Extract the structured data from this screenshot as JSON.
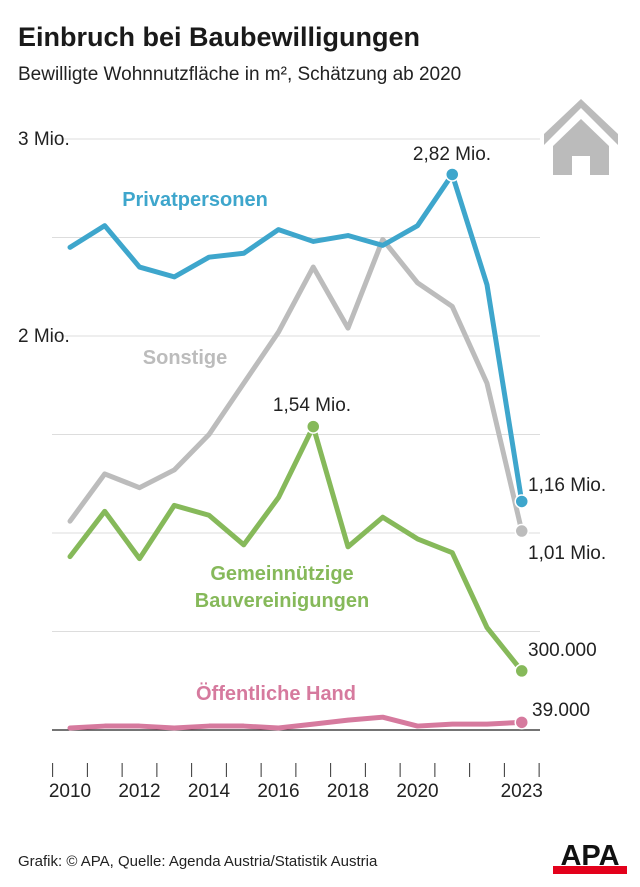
{
  "title": "Einbruch bei Baubewilligungen",
  "subtitle": "Bewilligte Wohnnutzfläche in m², Schätzung ab 2020",
  "source": "Grafik: © APA, Quelle: Agenda Austria/Statistik Austria",
  "logo": "APA",
  "icon": "house-icon",
  "chart_data": {
    "type": "line",
    "x": [
      2010,
      2011,
      2012,
      2013,
      2014,
      2015,
      2016,
      2017,
      2018,
      2019,
      2020,
      2021,
      2022,
      2023
    ],
    "x_tick_labels": [
      "2010",
      "2012",
      "2014",
      "2016",
      "2018",
      "2020",
      "2023"
    ],
    "y_tick_labels": [
      {
        "value": 3,
        "label": "3 Mio."
      },
      {
        "value": 2,
        "label": "2 Mio."
      }
    ],
    "ylim": [
      0,
      3
    ],
    "unit": "Mio. m²",
    "grid": true,
    "series": [
      {
        "name": "Privatpersonen",
        "color": "#3ea6cc",
        "values": [
          2.45,
          2.56,
          2.35,
          2.3,
          2.4,
          2.42,
          2.54,
          2.48,
          2.51,
          2.46,
          2.56,
          2.82,
          2.26,
          1.16
        ],
        "annotations": [
          {
            "year": 2021,
            "label": "2,82 Mio."
          },
          {
            "year": 2023,
            "label": "1,16 Mio."
          }
        ]
      },
      {
        "name": "Sonstige",
        "color": "#bcbcbc",
        "values": [
          1.06,
          1.3,
          1.23,
          1.32,
          1.5,
          1.76,
          2.02,
          2.35,
          2.04,
          2.49,
          2.27,
          2.15,
          1.76,
          1.01
        ],
        "annotations": [
          {
            "year": 2023,
            "label": "1,01 Mio."
          }
        ]
      },
      {
        "name": "Gemeinnützige Bauvereinigungen",
        "name_lines": [
          "Gemeinnützige",
          "Bauvereinigungen"
        ],
        "color": "#86b95a",
        "values": [
          0.88,
          1.11,
          0.87,
          1.14,
          1.09,
          0.94,
          1.18,
          1.54,
          0.93,
          1.08,
          0.97,
          0.9,
          0.52,
          0.3
        ],
        "annotations": [
          {
            "year": 2017,
            "label": "1,54 Mio."
          },
          {
            "year": 2023,
            "label": "300.000"
          }
        ]
      },
      {
        "name": "Öffentliche Hand",
        "color": "#d67a9e",
        "values": [
          0.01,
          0.02,
          0.02,
          0.01,
          0.02,
          0.02,
          0.01,
          0.03,
          0.05,
          0.065,
          0.02,
          0.03,
          0.03,
          0.039
        ],
        "annotations": [
          {
            "year": 2023,
            "label": "39.000"
          }
        ]
      }
    ]
  }
}
